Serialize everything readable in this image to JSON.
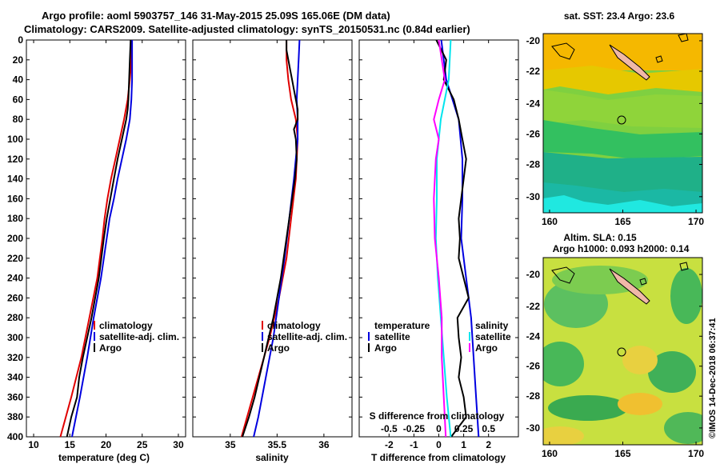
{
  "header": {
    "line1": "Argo profile: aoml 5903757_146 31-May-2015 25.09S 165.06E (DM data)",
    "line2": "Climatology: CARS2009. Satellite-adjusted climatology: synTS_20150531.nc (0.84d earlier)"
  },
  "colors": {
    "red": "#e00000",
    "blue": "#0000e0",
    "black": "#000000",
    "magenta": "#ff00ff",
    "cyan": "#00e5ee"
  },
  "chart_data": [
    {
      "type": "line",
      "id": "temperature",
      "xlabel": "temperature (deg C)",
      "ylabel": "",
      "xlim": [
        9,
        31
      ],
      "ylim": [
        400,
        0
      ],
      "xticks": [
        10,
        15,
        20,
        25,
        30
      ],
      "xtick_labels": [
        "10",
        "15",
        "20",
        "25",
        "30"
      ],
      "yticks": [
        0,
        20,
        40,
        60,
        80,
        100,
        120,
        140,
        160,
        180,
        200,
        220,
        240,
        260,
        280,
        300,
        320,
        340,
        360,
        380,
        400
      ],
      "ytick_labels": [
        "0",
        "20",
        "40",
        "60",
        "80",
        "100",
        "120",
        "140",
        "160",
        "180",
        "200",
        "220",
        "240",
        "260",
        "280",
        "300",
        "320",
        "340",
        "360",
        "380",
        "400"
      ],
      "legend": {
        "position": "middle-right",
        "items": [
          "climatology",
          "satellite-adj. clim.",
          "Argo"
        ]
      },
      "series": [
        {
          "name": "climatology",
          "color": "red",
          "depth": [
            0,
            20,
            40,
            60,
            80,
            100,
            120,
            140,
            160,
            180,
            200,
            240,
            280,
            320,
            360,
            400
          ],
          "values": [
            23.5,
            23.5,
            23.3,
            23.0,
            22.5,
            21.9,
            21.3,
            20.7,
            20.2,
            19.8,
            19.5,
            18.8,
            17.7,
            16.6,
            15.2,
            13.7
          ]
        },
        {
          "name": "satellite-adj. clim.",
          "color": "blue",
          "depth": [
            0,
            20,
            40,
            60,
            80,
            100,
            120,
            140,
            160,
            180,
            200,
            240,
            280,
            320,
            360,
            400
          ],
          "values": [
            23.6,
            23.6,
            23.6,
            23.5,
            23.3,
            22.8,
            22.2,
            21.6,
            21.1,
            20.5,
            20.1,
            19.3,
            18.3,
            17.4,
            16.4,
            15.3
          ]
        },
        {
          "name": "Argo",
          "color": "black",
          "depth": [
            0,
            20,
            40,
            60,
            70,
            80,
            100,
            120,
            140,
            160,
            180,
            200,
            240,
            280,
            320,
            340,
            360,
            380,
            400
          ],
          "values": [
            23.4,
            23.3,
            23.2,
            23.1,
            23.0,
            22.8,
            22.2,
            21.6,
            21.1,
            20.6,
            20.1,
            19.7,
            19.0,
            18.0,
            16.8,
            16.3,
            16.0,
            15.2,
            14.6
          ]
        }
      ]
    },
    {
      "type": "line",
      "id": "salinity",
      "xlabel": "salinity",
      "xlim": [
        34.6,
        36.3
      ],
      "ylim": [
        400,
        0
      ],
      "xticks": [
        35,
        35.5,
        36
      ],
      "xtick_labels": [
        "35",
        "35.5",
        "36"
      ],
      "legend": {
        "position": "middle-right",
        "items": [
          "climatology",
          "satellite-adj. clim.",
          "Argo"
        ]
      },
      "series": [
        {
          "name": "climatology",
          "color": "red",
          "depth": [
            0,
            20,
            40,
            60,
            80,
            100,
            140,
            180,
            220,
            260,
            300,
            340,
            380,
            400
          ],
          "values": [
            35.6,
            35.6,
            35.62,
            35.65,
            35.7,
            35.72,
            35.7,
            35.65,
            35.6,
            35.52,
            35.42,
            35.3,
            35.18,
            35.12
          ]
        },
        {
          "name": "satellite-adj. clim.",
          "color": "blue",
          "depth": [
            0,
            20,
            40,
            60,
            80,
            100,
            140,
            180,
            220,
            260,
            300,
            340,
            380,
            400
          ],
          "values": [
            35.74,
            35.73,
            35.72,
            35.71,
            35.72,
            35.72,
            35.68,
            35.63,
            35.58,
            35.52,
            35.46,
            35.38,
            35.3,
            35.25
          ]
        },
        {
          "name": "Argo",
          "color": "black",
          "depth": [
            0,
            10,
            20,
            30,
            40,
            50,
            60,
            70,
            80,
            90,
            100,
            120,
            140,
            160,
            200,
            240,
            280,
            300,
            320,
            340,
            360,
            380,
            400
          ],
          "values": [
            35.6,
            35.6,
            35.62,
            35.64,
            35.66,
            35.68,
            35.7,
            35.72,
            35.72,
            35.68,
            35.7,
            35.71,
            35.69,
            35.66,
            35.6,
            35.54,
            35.46,
            35.41,
            35.36,
            35.31,
            35.26,
            35.2,
            35.13
          ]
        }
      ]
    },
    {
      "type": "line",
      "id": "differences",
      "xlabel": "T difference from climatology",
      "top_axis_label": "S difference from climatology",
      "xlim": [
        -3.2,
        3.2
      ],
      "ylim": [
        400,
        0
      ],
      "xticks": [
        -2,
        -1,
        0,
        1,
        2
      ],
      "xtick_labels": [
        "-2",
        "-1",
        "0",
        "1",
        "2"
      ],
      "top_xticks": [
        -0.5,
        -0.25,
        0,
        0.25,
        0.5
      ],
      "top_xtick_labels": [
        "-0.5",
        "-0.25",
        "0",
        "0.25",
        "0.5"
      ],
      "legend_left": {
        "title": "temperature",
        "items": [
          "satellite",
          "Argo"
        ]
      },
      "legend_right": {
        "title": "salinity",
        "items": [
          "satellite",
          "Argo"
        ]
      },
      "series": [
        {
          "name": "temperature satellite",
          "color": "blue",
          "depth": [
            0,
            40,
            80,
            120,
            160,
            200,
            240,
            280,
            320,
            360,
            400
          ],
          "values": [
            0.1,
            0.3,
            0.8,
            0.95,
            0.95,
            0.9,
            1.1,
            1.3,
            1.4,
            1.5,
            1.6
          ]
        },
        {
          "name": "temperature Argo",
          "color": "black",
          "depth": [
            0,
            20,
            40,
            60,
            80,
            100,
            120,
            140,
            160,
            180,
            200,
            220,
            240,
            260,
            280,
            300,
            320,
            340,
            360,
            380,
            400
          ],
          "values": [
            -0.1,
            0.3,
            0.2,
            0.6,
            0.8,
            0.95,
            1.1,
            1.0,
            0.9,
            0.8,
            0.85,
            0.8,
            1.0,
            1.2,
            0.75,
            0.8,
            0.9,
            0.8,
            1.0,
            1.1,
            0.5
          ]
        },
        {
          "name": "salinity satellite",
          "color": "cyan",
          "depth": [
            0,
            40,
            80,
            120,
            160,
            200,
            240,
            280,
            320,
            360,
            400
          ],
          "values": [
            0.12,
            0.1,
            0.02,
            -0.02,
            -0.02,
            -0.03,
            -0.01,
            0.02,
            0.05,
            0.08,
            0.12
          ]
        },
        {
          "name": "salinity Argo",
          "color": "magenta",
          "depth": [
            0,
            40,
            60,
            80,
            100,
            120,
            160,
            200,
            240,
            280,
            320,
            360,
            400
          ],
          "values": [
            0.0,
            0.06,
            0.0,
            -0.05,
            0.0,
            -0.03,
            -0.05,
            -0.04,
            0.0,
            0.03,
            0.03,
            0.05,
            0.07
          ]
        }
      ]
    }
  ],
  "maps": {
    "sst": {
      "title": "sat. SST: 23.4 Argo: 23.6",
      "xtick_labels": [
        "160",
        "165",
        "170"
      ],
      "ytick_labels": [
        "-20",
        "-22",
        "-24",
        "-26",
        "-28",
        "-30"
      ]
    },
    "sla": {
      "title_line1": "Altim. SLA: 0.15",
      "title_line2": "Argo h1000: 0.093 h2000: 0.14",
      "xtick_labels": [
        "160",
        "165",
        "170"
      ],
      "ytick_labels": [
        "-20",
        "-22",
        "-24",
        "-26",
        "-28",
        "-30"
      ]
    }
  },
  "credit": "©IMOS 14-Dec-2018 06:37:41"
}
